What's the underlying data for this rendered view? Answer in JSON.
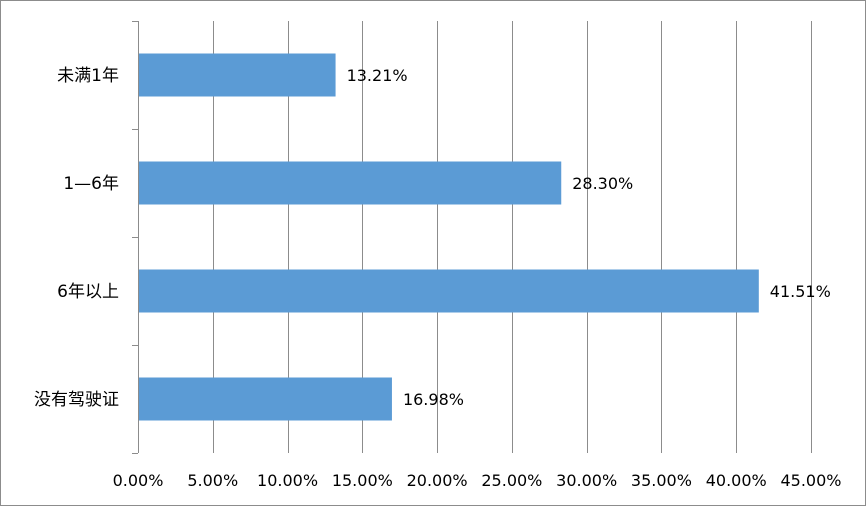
{
  "chart_data": {
    "type": "bar",
    "orientation": "horizontal",
    "categories": [
      "未满1年",
      "1—6年",
      "6年以上",
      "没有驾驶证"
    ],
    "values": [
      13.21,
      28.3,
      41.51,
      16.98
    ],
    "value_labels": [
      "13.21%",
      "28.30%",
      "41.51%",
      "16.98%"
    ],
    "xlim": [
      0,
      45
    ],
    "x_ticks": [
      0,
      5,
      10,
      15,
      20,
      25,
      30,
      35,
      40,
      45
    ],
    "x_tick_labels": [
      "0.00%",
      "5.00%",
      "10.00%",
      "15.00%",
      "20.00%",
      "25.00%",
      "30.00%",
      "35.00%",
      "40.00%",
      "45.00%"
    ],
    "title": "",
    "xlabel": "",
    "ylabel": "",
    "grid": "vertical",
    "legend": "none",
    "colors": {
      "bar": "#5b9bd5",
      "grid": "#8c8c8c",
      "axis": "#8c8c8c",
      "text": "#000000"
    }
  }
}
